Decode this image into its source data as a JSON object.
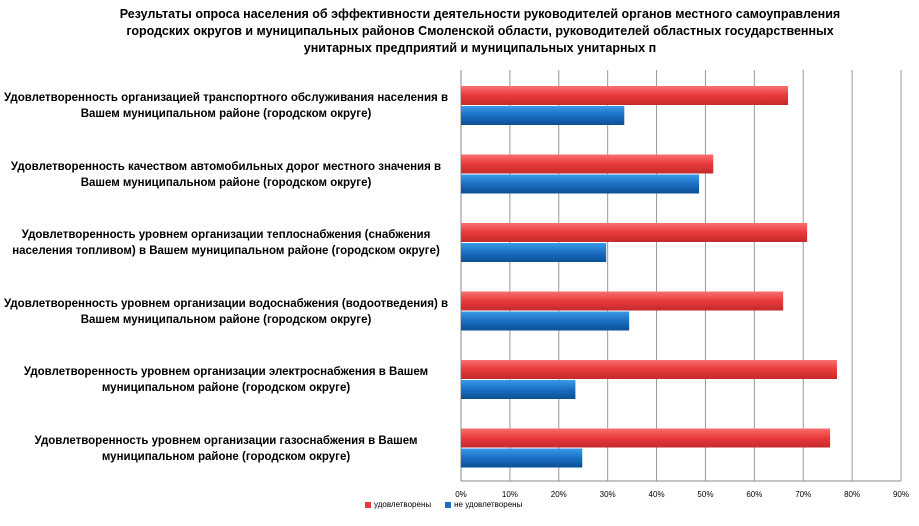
{
  "chart_data": {
    "type": "bar",
    "orientation": "horizontal",
    "title": "Результаты опроса населения об эффективности деятельности руководителей органов местного самоуправления городских округов и муниципальных районов Смоленской области, руководителей областных государственных унитарных предприятий и муниципальных унитарных п",
    "categories": [
      "Удовлетворенность организацией транспортного обслуживания населения в Вашем муниципальном районе (городском округе)",
      "Удовлетворенность качеством автомобильных дорог местного значения в Вашем муниципальном районе (городском округе)",
      "Удовлетворенность уровнем организации теплоснабжения (снабжения населения топливом) в Вашем муниципальном районе (городском округе)",
      "Удовлетворенность уровнем организации водоснабжения (водоотведения) в Вашем муниципальном районе (городском округе)",
      "Удовлетворенность уровнем организации электроснабжения в Вашем муниципальном районе (городском округе)",
      "Удовлетворенность уровнем организации газоснабжения в Вашем муниципальном районе (городском округе)"
    ],
    "series": [
      {
        "name": "удовлетворены",
        "color": "#e8393c",
        "values": [
          66.9,
          51.6,
          70.8,
          65.9,
          76.9,
          75.5
        ]
      },
      {
        "name": "не удовлетворены",
        "color": "#1a6fc4",
        "values": [
          33.4,
          48.7,
          29.7,
          34.4,
          23.4,
          24.8
        ]
      }
    ],
    "xlim": [
      0,
      90
    ],
    "xticks": [
      "0%",
      "10%",
      "20%",
      "30%",
      "40%",
      "50%",
      "60%",
      "70%",
      "80%",
      "90%"
    ],
    "grid": "vertical",
    "legend": "bottom"
  }
}
